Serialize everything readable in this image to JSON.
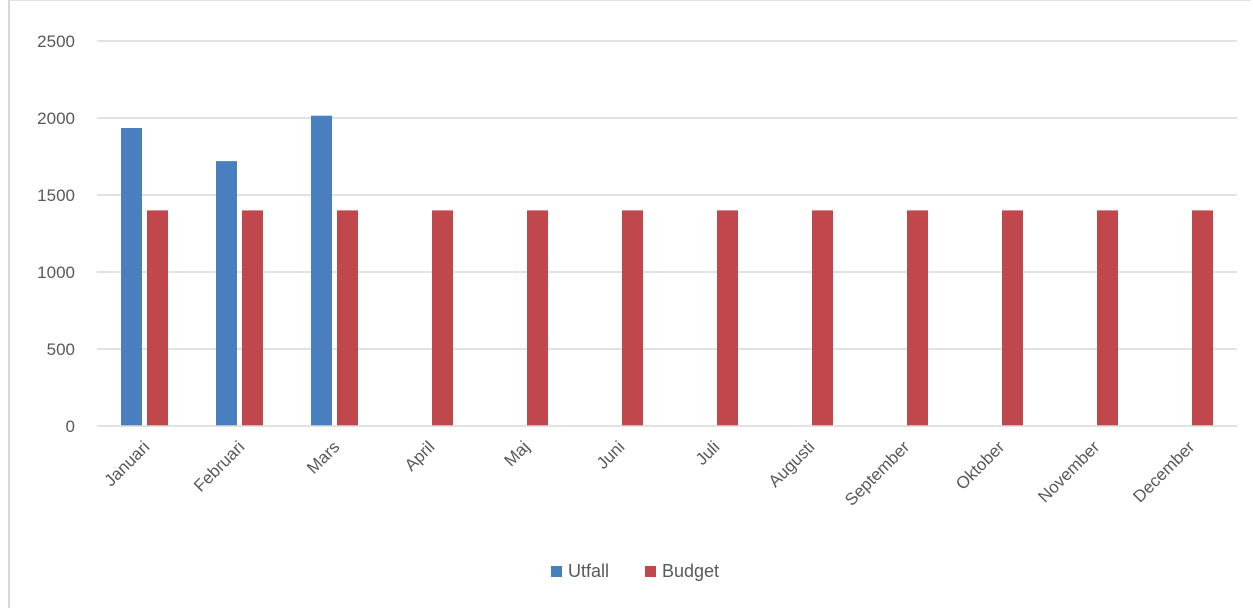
{
  "chart_data": {
    "type": "bar",
    "categories": [
      "Januari",
      "Februari",
      "Mars",
      "April",
      "Maj",
      "Juni",
      "Juli",
      "Augusti",
      "September",
      "Oktober",
      "November",
      "December"
    ],
    "series": [
      {
        "name": "Utfall",
        "color": "#4a7fbf",
        "values": [
          1935,
          1720,
          2015,
          null,
          null,
          null,
          null,
          null,
          null,
          null,
          null,
          null
        ]
      },
      {
        "name": "Budget",
        "color": "#c0474b",
        "values": [
          1400,
          1400,
          1400,
          1400,
          1400,
          1400,
          1400,
          1400,
          1400,
          1400,
          1400,
          1400
        ]
      }
    ],
    "ylim": [
      0,
      2500
    ],
    "yticks": [
      0,
      500,
      1000,
      1500,
      2000,
      2500
    ],
    "grid": true,
    "legend_position": "bottom"
  }
}
